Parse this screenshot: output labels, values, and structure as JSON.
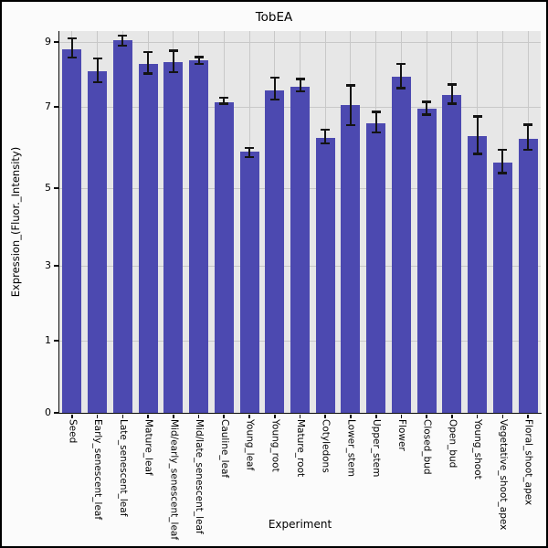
{
  "figure": {
    "title": "TobEA"
  },
  "chart_data": {
    "type": "bar",
    "title": "TobEA",
    "xlabel": "Experiment",
    "ylabel": "Expression_(Fluor._Intensity)",
    "yticks": [
      0,
      1,
      3,
      5,
      7,
      9
    ],
    "ylim": [
      0,
      9.35
    ],
    "grid": true,
    "legend": "none",
    "bar_color": "#4c49b0",
    "error_color": "#141414",
    "panel_bg": "#e7e7e7",
    "grid_color": "#c8c8c8",
    "categories": [
      "Seed",
      "Early_senescent_leaf",
      "Late_senescent_leaf",
      "Mature_leaf",
      "Mid/early_senescent_leaf",
      "Mid/late_senescent_leaf",
      "Cauline_leaf",
      "Young_leaf",
      "Young_root",
      "Mature_root",
      "Cotyledons",
      "Lower_stem",
      "Upper_stem",
      "Flower",
      "Closed_bud",
      "Open_bud",
      "Young_shoot",
      "Vegetative_shoot_apex",
      "Floral_shoot_apex"
    ],
    "series": [
      {
        "name": "Expression_(Fluor._Intensity)",
        "values": [
          8.77,
          8.1,
          9.06,
          8.32,
          8.38,
          8.43,
          7.14,
          5.9,
          7.52,
          7.61,
          6.24,
          7.06,
          6.6,
          7.94,
          6.96,
          7.36,
          6.28,
          5.63,
          6.21
        ],
        "error_low": [
          8.49,
          7.73,
          8.86,
          7.99,
          8.04,
          8.29,
          7.06,
          5.74,
          7.19,
          7.44,
          6.07,
          6.53,
          6.35,
          7.54,
          6.78,
          7.07,
          5.82,
          5.34,
          5.91
        ],
        "error_high": [
          9.14,
          8.52,
          9.23,
          8.72,
          8.77,
          8.57,
          7.31,
          6.01,
          7.94,
          7.89,
          6.46,
          7.7,
          6.9,
          8.36,
          7.19,
          7.72,
          6.79,
          5.97,
          6.59
        ]
      }
    ]
  }
}
